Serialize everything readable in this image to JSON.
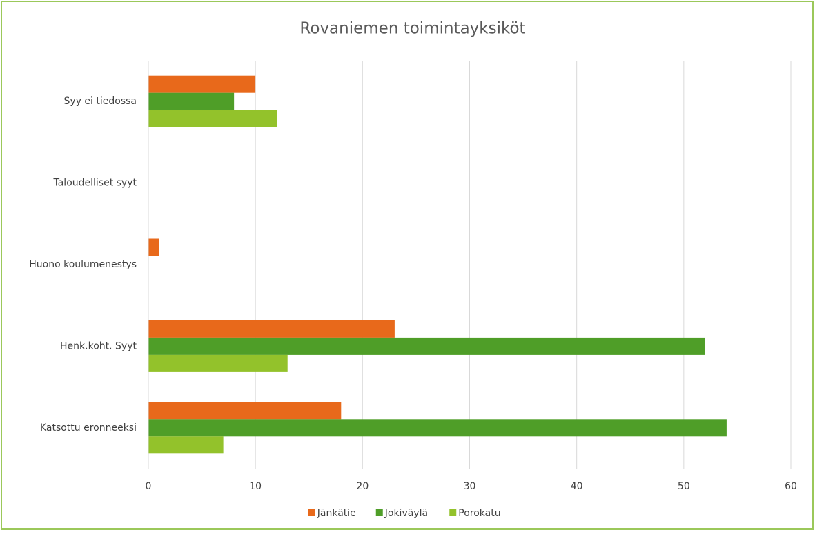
{
  "chart_data": {
    "type": "bar",
    "orientation": "horizontal",
    "title": "Rovaniemen toimintayksiköt",
    "categories": [
      "Katsottu eronneeksi",
      "Henk.koht. Syyt",
      "Huono koulumenestys",
      "Taloudelliset syyt",
      "Syy ei tiedossa"
    ],
    "series": [
      {
        "name": "Jänkätie",
        "color": "#e8691b",
        "values": [
          18,
          23,
          1,
          0,
          10
        ]
      },
      {
        "name": "Jokiväylä",
        "color": "#4f9e28",
        "values": [
          54,
          52,
          0,
          0,
          8
        ]
      },
      {
        "name": "Porokatu",
        "color": "#93c22b",
        "values": [
          7,
          13,
          0,
          0,
          12
        ]
      }
    ],
    "xlim": [
      0,
      60
    ],
    "xticks": [
      0,
      10,
      20,
      30,
      40,
      50,
      60
    ],
    "grid": true,
    "legend": "bottom"
  }
}
